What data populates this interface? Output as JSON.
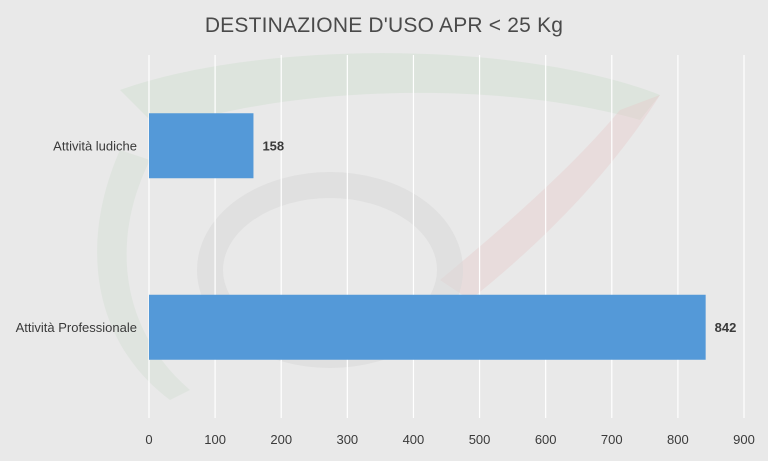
{
  "chart_data": {
    "type": "bar",
    "orientation": "horizontal",
    "title": "DESTINAZIONE D'USO APR < 25 Kg",
    "xlabel": "",
    "ylabel": "",
    "categories": [
      "Attività ludiche",
      "Attività Professionale"
    ],
    "values": [
      158,
      842
    ],
    "data_labels": [
      "158",
      "842"
    ],
    "xlim": [
      0,
      900
    ],
    "x_ticks": [
      0,
      100,
      200,
      300,
      400,
      500,
      600,
      700,
      800,
      900
    ],
    "grid": "vertical",
    "legend": "none",
    "colors": {
      "bar": "#5499d8",
      "background": "#e9e9e9",
      "grid": "#ffffff",
      "text": "#3a3a3a"
    }
  }
}
